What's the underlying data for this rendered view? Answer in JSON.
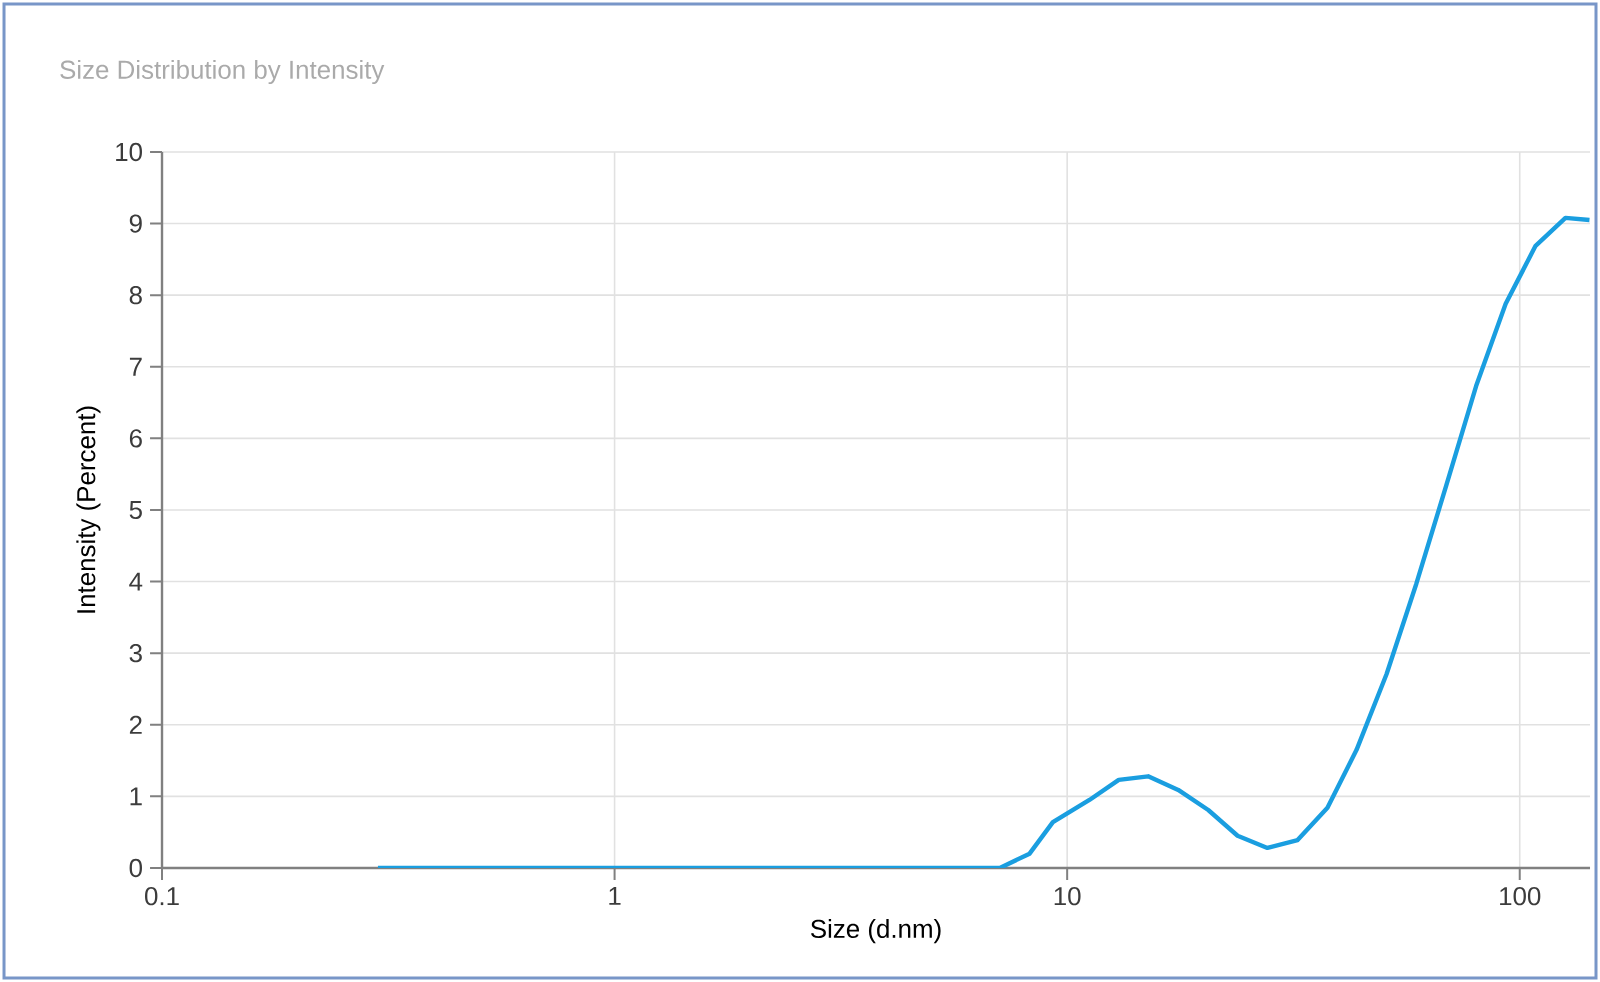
{
  "chart_data": {
    "type": "line",
    "title": "Size Distribution by Intensity",
    "xlabel": "Size (d.nm)",
    "ylabel": "Intensity (Percent)",
    "log": "x",
    "grid": true,
    "marker": "none",
    "line_style": "solid",
    "xlim": [
      0.1,
      143
    ],
    "ylim": [
      0,
      10
    ],
    "xticks": [
      0.1,
      1,
      10,
      100
    ],
    "yticks": [
      0,
      1,
      2,
      3,
      4,
      5,
      6,
      7,
      8,
      9,
      10
    ],
    "series": [
      {
        "color": "#1a9ee0",
        "x": [
          0.3,
          7.1,
          8.26,
          9.3,
          11.2,
          13.0,
          15.1,
          17.6,
          20.5,
          23.8,
          27.7,
          32.3,
          37.6,
          43.6,
          50.8,
          59.1,
          68.8,
          80.1,
          93.1,
          108.4,
          126.2,
          142.6
        ],
        "values": [
          0,
          0,
          0.2,
          0.64,
          0.95,
          1.23,
          1.28,
          1.09,
          0.81,
          0.45,
          0.28,
          0.39,
          0.84,
          1.65,
          2.71,
          3.97,
          5.34,
          6.73,
          7.88,
          8.69,
          9.08,
          9.05
        ]
      }
    ]
  }
}
